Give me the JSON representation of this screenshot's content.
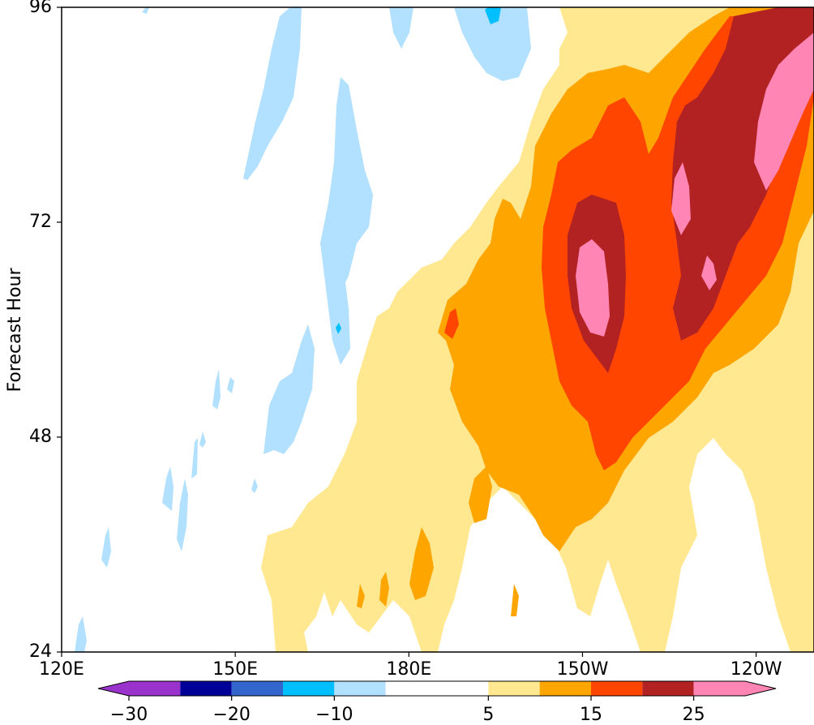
{
  "chart_data": {
    "type": "heatmap",
    "subtype": "filled contour (Hovmoller diagram)",
    "title": "",
    "xlabel": "",
    "ylabel": "Forecast Hour",
    "x_ticks": [
      "120E",
      "150E",
      "180E",
      "150W",
      "120W"
    ],
    "x_tick_values": [
      120,
      150,
      180,
      210,
      240
    ],
    "xlim": [
      120,
      250
    ],
    "y_ticks": [
      "24",
      "48",
      "72",
      "96"
    ],
    "y_tick_values": [
      24,
      48,
      72,
      96
    ],
    "ylim": [
      24,
      96
    ],
    "grid": false,
    "colorbar": {
      "orientation": "horizontal",
      "placement": "bottom",
      "extend": "both",
      "levels": [
        -30,
        -25,
        -20,
        -15,
        -10,
        -5,
        5,
        10,
        15,
        20,
        25,
        30
      ],
      "tick_labels": [
        "−30",
        "−20",
        "−10",
        "5",
        "15",
        "25"
      ],
      "tick_values": [
        -30,
        -20,
        -10,
        5,
        15,
        25
      ],
      "colors": [
        "#9933cc",
        "#000099",
        "#3366cc",
        "#00bfff",
        "#b2e0ff",
        "#ffffff",
        "#ffe88f",
        "#ffa500",
        "#ff4500",
        "#b22222",
        "#ff85b5"
      ],
      "under_color": "#9933cc",
      "over_color": "#ff85b5"
    },
    "features": [
      {
        "level": 5,
        "lon": [
          183,
          208,
          230,
          246,
          240,
          220,
          200,
          185
        ],
        "hour": [
          48,
          62,
          78,
          96,
          70,
          56,
          42,
          30
        ],
        "description": "positive anomaly band propagating eastward"
      },
      {
        "level": 15,
        "lon": [
          205,
          214,
          228,
          236,
          246,
          222,
          212
        ],
        "hour": [
          55,
          66,
          78,
          92,
          96,
          58,
          48
        ],
        "description": "strong positive core"
      },
      {
        "level": 25,
        "lon": [
          213,
          217,
          230,
          236,
          240
        ],
        "hour": [
          62,
          68,
          76,
          82,
          90
        ],
        "description": "peak positive cells"
      },
      {
        "level": -10,
        "lon": [
          127,
          143,
          160,
          168,
          175,
          179
        ],
        "hour": [
          26,
          40,
          55,
          70,
          87,
          95
        ],
        "description": "weak negative anomaly streaks"
      }
    ]
  }
}
